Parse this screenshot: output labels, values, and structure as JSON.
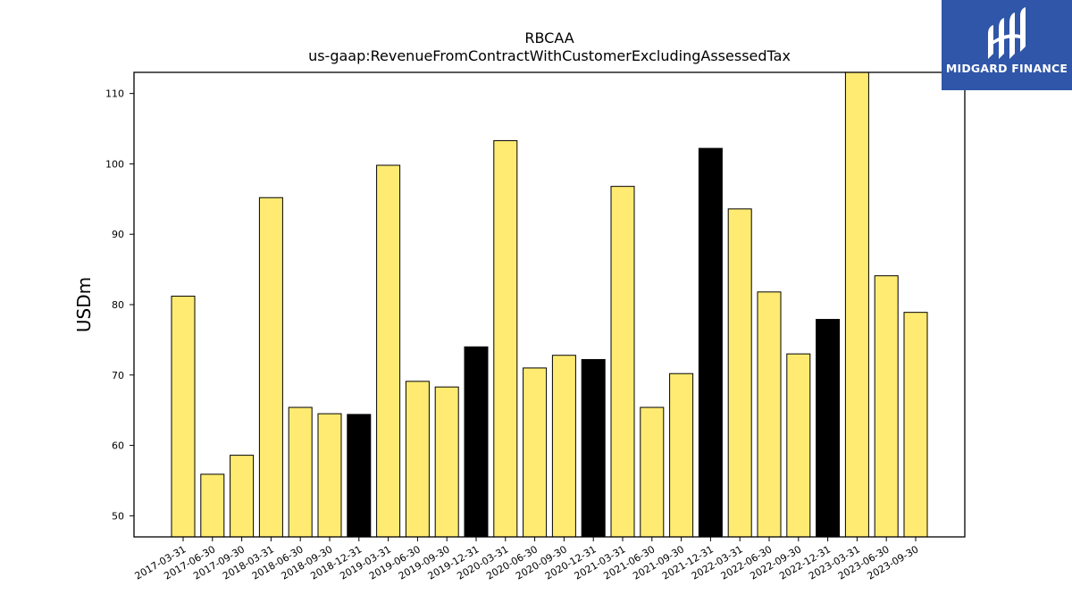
{
  "chart_data": {
    "type": "bar",
    "title": "RBCAA",
    "subtitle": "us-gaap:RevenueFromContractWithCustomerExcludingAssessedTax",
    "ylabel": "USDm",
    "xlabel": "",
    "ylim": [
      47,
      113
    ],
    "yticks": [
      50,
      60,
      70,
      80,
      90,
      100,
      110
    ],
    "grid": false,
    "categories": [
      "2017-03-31",
      "2017-06-30",
      "2017-09-30",
      "2018-03-31",
      "2018-06-30",
      "2018-09-30",
      "2018-12-31",
      "2019-03-31",
      "2019-06-30",
      "2019-09-30",
      "2019-12-31",
      "2020-03-31",
      "2020-06-30",
      "2020-09-30",
      "2020-12-31",
      "2021-03-31",
      "2021-06-30",
      "2021-09-30",
      "2021-12-31",
      "2022-03-31",
      "2022-06-30",
      "2022-09-30",
      "2022-12-31",
      "2023-03-31",
      "2023-06-30",
      "2023-09-30"
    ],
    "values": [
      81.2,
      55.9,
      58.6,
      95.2,
      65.4,
      64.5,
      64.4,
      99.8,
      69.1,
      68.3,
      74.0,
      103.3,
      71.0,
      72.8,
      72.2,
      96.8,
      65.4,
      70.2,
      102.2,
      93.6,
      81.8,
      73.0,
      77.9,
      113.0,
      84.1,
      78.9
    ],
    "highlight": [
      false,
      false,
      false,
      false,
      false,
      false,
      true,
      false,
      false,
      false,
      true,
      false,
      false,
      false,
      true,
      false,
      false,
      false,
      true,
      false,
      false,
      false,
      true,
      false,
      false,
      false
    ],
    "colors": {
      "bar": "#ffeb72",
      "highlight": "#000000",
      "edge": "#000000"
    }
  },
  "logo": {
    "text": "MIDGARD FINANCE",
    "background": "#2f56a8"
  }
}
